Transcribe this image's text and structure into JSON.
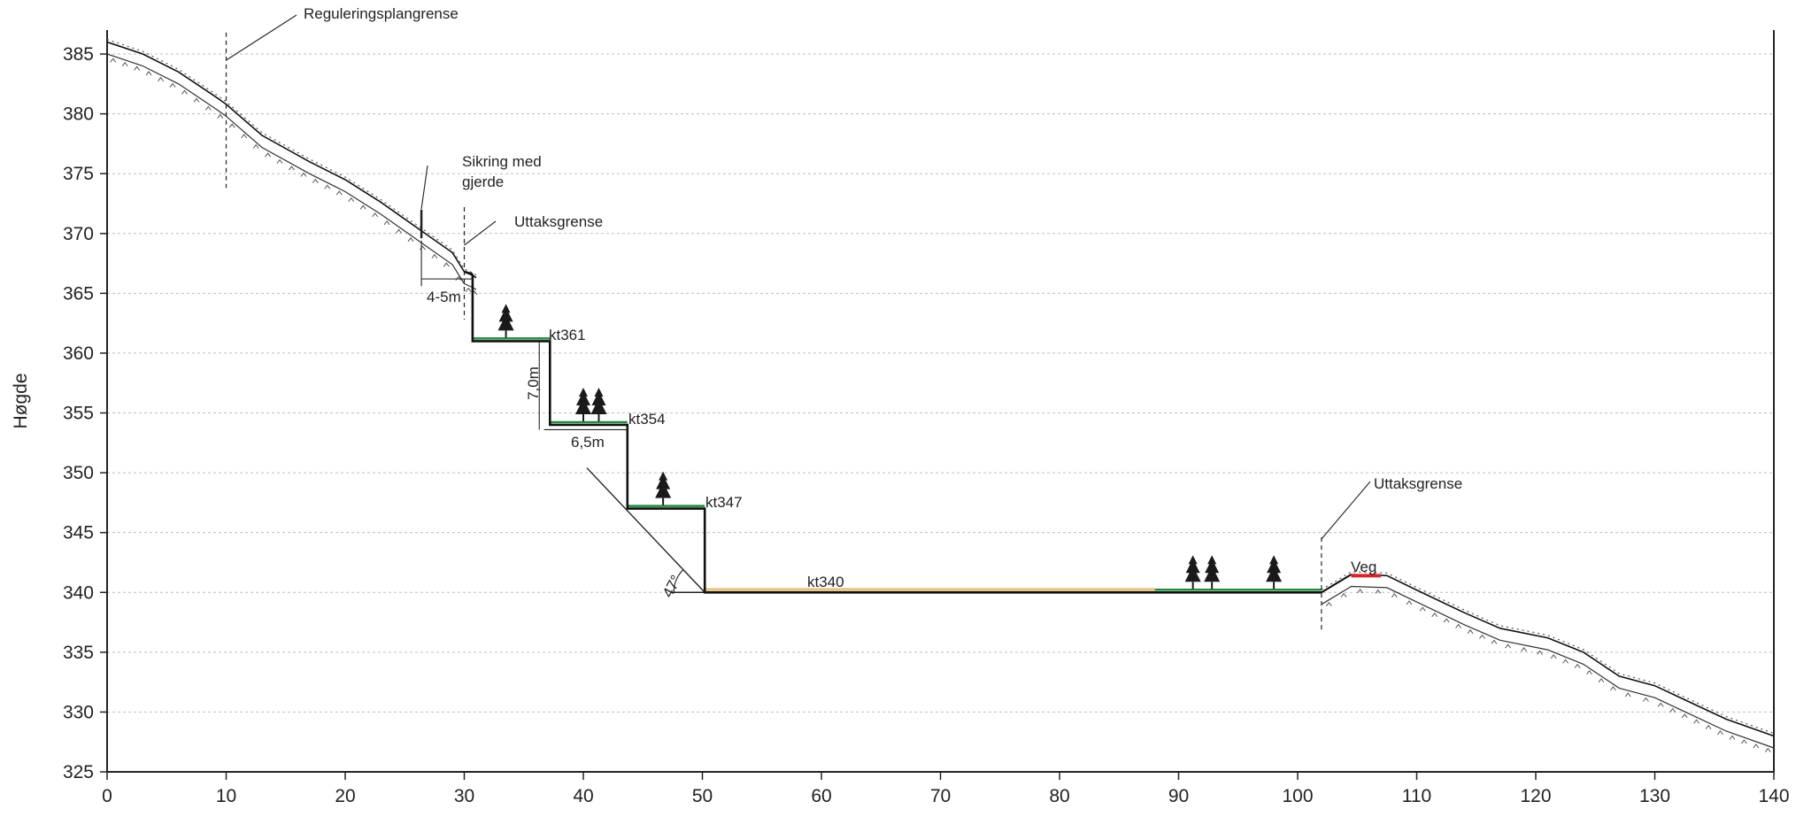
{
  "chart_data": {
    "type": "line",
    "title": "",
    "xlabel": "",
    "ylabel": "Høgde",
    "xlim": [
      0,
      140
    ],
    "ylim": [
      325,
      387
    ],
    "x_ticks": [
      0,
      10,
      20,
      30,
      40,
      50,
      60,
      70,
      80,
      90,
      100,
      110,
      120,
      130,
      140
    ],
    "y_ticks": [
      325,
      330,
      335,
      340,
      345,
      350,
      355,
      360,
      365,
      370,
      375,
      380,
      385
    ],
    "grid": "horizontal dashed",
    "terrain": [
      [
        0,
        386
      ],
      [
        3,
        385
      ],
      [
        6,
        383.5
      ],
      [
        9,
        381.5
      ],
      [
        10,
        380.8
      ],
      [
        13,
        378.2
      ],
      [
        17,
        376
      ],
      [
        20,
        374.5
      ],
      [
        23,
        372.6
      ],
      [
        26,
        370.5
      ],
      [
        29,
        368.4
      ],
      [
        30,
        366.8
      ],
      [
        30.7,
        366.5
      ],
      [
        31,
        366.3
      ]
    ],
    "terrain_right": [
      [
        102,
        340
      ],
      [
        104.5,
        341.5
      ],
      [
        107.5,
        341.4
      ],
      [
        110,
        340.2
      ],
      [
        114,
        338.3
      ],
      [
        117,
        337
      ],
      [
        121,
        336.2
      ],
      [
        124,
        335
      ],
      [
        127,
        333
      ],
      [
        130,
        332.2
      ],
      [
        133,
        330.8
      ],
      [
        136,
        329.4
      ],
      [
        140,
        328
      ]
    ],
    "design_profile": [
      [
        30.7,
        366.6
      ],
      [
        30.7,
        361
      ],
      [
        37.2,
        361
      ],
      [
        37.2,
        354
      ],
      [
        43.7,
        354
      ],
      [
        43.7,
        347
      ],
      [
        50.2,
        347
      ],
      [
        50.2,
        340
      ],
      [
        102,
        340
      ]
    ],
    "benches": [
      {
        "label": "kt361",
        "x": [
          30.7,
          37.2
        ],
        "y": 361
      },
      {
        "label": "kt354",
        "x": [
          37.2,
          43.7
        ],
        "y": 354
      },
      {
        "label": "kt347",
        "x": [
          43.7,
          50.2
        ],
        "y": 347
      },
      {
        "label": "kt340",
        "x": [
          50.2,
          102
        ],
        "y": 340
      }
    ],
    "annotations": [
      {
        "text": "Reguleringsplangrense",
        "x": 10
      },
      {
        "text": "Sikring med",
        "x": 26.5
      },
      {
        "text": "gjerde",
        "x": 26.5
      },
      {
        "text": "Uttaksgrense",
        "x": 30
      },
      {
        "text": "Uttaksgrense",
        "x": 102
      },
      {
        "text": "4-5m"
      },
      {
        "text": "7,0m"
      },
      {
        "text": "6,5m"
      },
      {
        "text": "47°"
      },
      {
        "text": "Veg",
        "x": [
          104.5,
          107
        ]
      }
    ],
    "tree_groups": [
      {
        "bench": "kt361",
        "x": [
          33.5
        ]
      },
      {
        "bench": "kt354",
        "x": [
          40,
          41.3
        ]
      },
      {
        "bench": "kt347",
        "x": [
          46.7
        ]
      },
      {
        "bench": "kt340",
        "x": [
          91.2,
          92.8,
          98
        ]
      }
    ],
    "colors": {
      "terrain": "#111111",
      "vegetation": "#1f8a3b",
      "fill_zone": "#e6c78a",
      "road": "#d9262e",
      "grid": "#bdbdbd"
    }
  }
}
